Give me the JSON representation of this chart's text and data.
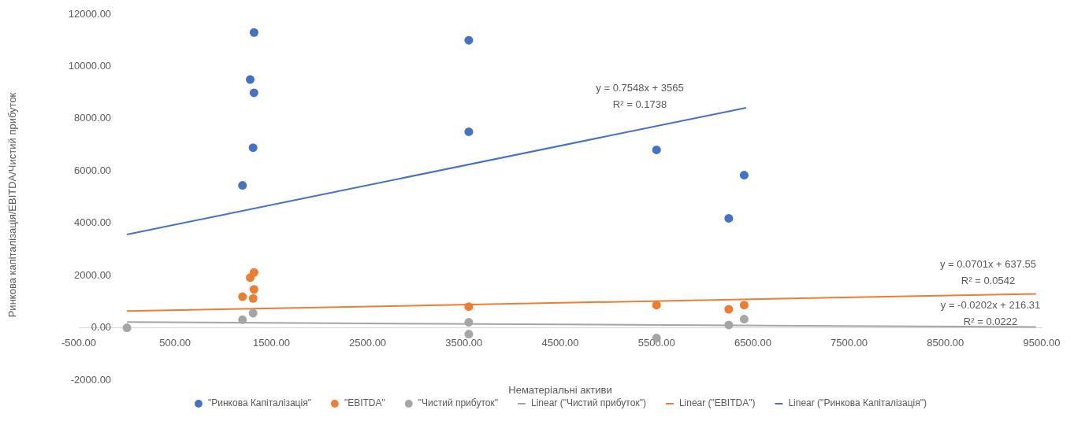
{
  "chart_data": {
    "type": "scatter",
    "xlabel": "Нематеріальні активи",
    "ylabel": "Ринкова капіталізація/EBITDA/Чистий прибуток",
    "xlim": [
      -500,
      9500
    ],
    "ylim": [
      -2000,
      12000
    ],
    "xticks": [
      {
        "value": -500,
        "label": "-500.00"
      },
      {
        "value": 500,
        "label": "500.00"
      },
      {
        "value": 1500,
        "label": "1500.00"
      },
      {
        "value": 2500,
        "label": "2500.00"
      },
      {
        "value": 3500,
        "label": "3500.00"
      },
      {
        "value": 4500,
        "label": "4500.00"
      },
      {
        "value": 5500,
        "label": "5500.00"
      },
      {
        "value": 6500,
        "label": "6500.00"
      },
      {
        "value": 7500,
        "label": "7500.00"
      },
      {
        "value": 8500,
        "label": "8500.00"
      },
      {
        "value": 9500,
        "label": "9500.00"
      }
    ],
    "yticks": [
      {
        "value": -2000,
        "label": "-2000.00"
      },
      {
        "value": 0,
        "label": "0.00"
      },
      {
        "value": 2000,
        "label": "2000.00"
      },
      {
        "value": 4000,
        "label": "4000.00"
      },
      {
        "value": 6000,
        "label": "6000.00"
      },
      {
        "value": 8000,
        "label": "8000.00"
      },
      {
        "value": 10000,
        "label": "10000.00"
      },
      {
        "value": 12000,
        "label": "12000.00"
      }
    ],
    "grid": false,
    "legend": "bottom",
    "marker": "circle",
    "series": [
      {
        "type": "scatter",
        "name": "\"Ринкова Капіталізація\"",
        "color": "#4472c4",
        "x": [
          1320,
          1280,
          1320,
          1310,
          1200,
          3550,
          3550,
          5500,
          6410,
          6250
        ],
        "values": [
          11300,
          9500,
          8990,
          6890,
          5450,
          11000,
          7500,
          6810,
          5840,
          4190
        ]
      },
      {
        "type": "scatter",
        "name": "\"EBITDA\"",
        "color": "#ed7d31",
        "x": [
          1200,
          1280,
          1320,
          1320,
          1310,
          3550,
          5500,
          6250,
          6410
        ],
        "values": [
          1190,
          1920,
          2120,
          1470,
          1120,
          810,
          870,
          710,
          870
        ]
      },
      {
        "type": "scatter",
        "name": "\"Чистий прибуток\"",
        "color": "#a5a5a5",
        "x": [
          0,
          1200,
          1310,
          3550,
          3550,
          5500,
          6250,
          6410
        ],
        "values": [
          0,
          310,
          560,
          210,
          -240,
          -390,
          110,
          330
        ]
      },
      {
        "type": "line",
        "name": "Linear (\"Чистий прибуток\")",
        "color": "#a5a5a5",
        "marker": "none",
        "x": [
          0,
          9440
        ],
        "values": [
          220,
          30
        ]
      },
      {
        "type": "line",
        "name": "Linear (\"EBITDA\")",
        "color": "#ed7d31",
        "marker": "none",
        "x": [
          0,
          9440
        ],
        "values": [
          640,
          1300
        ]
      },
      {
        "type": "line",
        "name": "Linear (\"Ринкова Капіталізація\")",
        "color": "#4472c4",
        "marker": "none",
        "x": [
          0,
          6430
        ],
        "values": [
          3570,
          8420
        ]
      }
    ],
    "annotations": [
      "y = 0.7548x + 3565",
      "R² = 0.1738",
      "y = 0.0701x + 637.55",
      "R² = 0.0542",
      "y = -0.0202x + 216.31",
      "R² = 0.0222"
    ]
  }
}
